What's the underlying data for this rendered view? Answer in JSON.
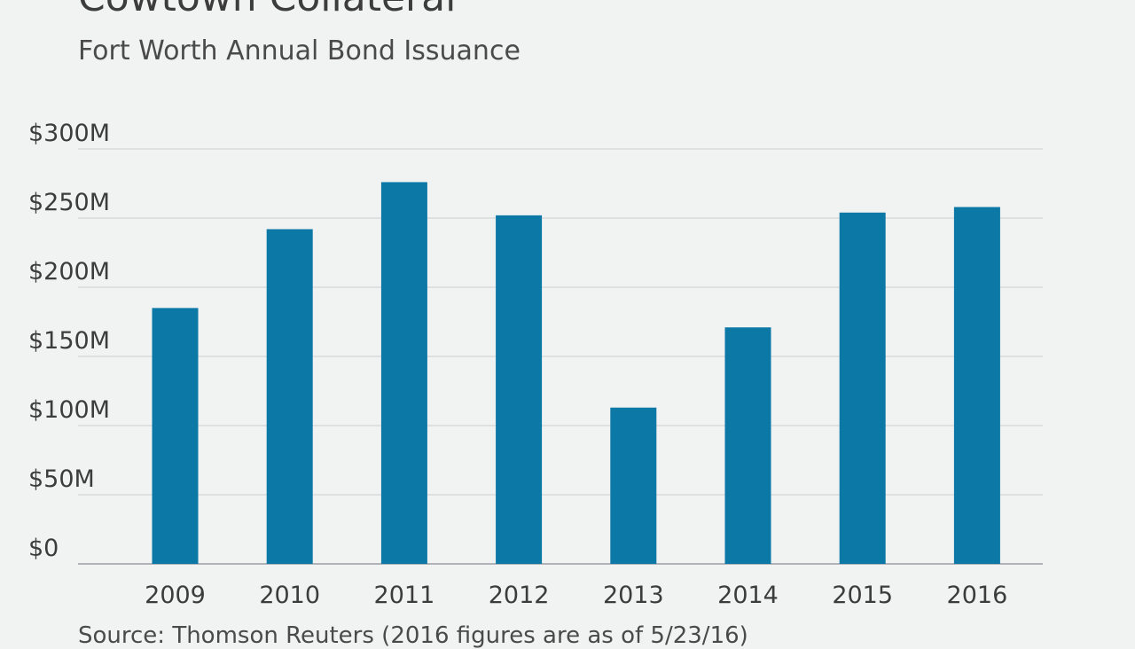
{
  "colors": {
    "background": "#f1f2f2",
    "bar": "#0b78a6",
    "grid": "#d4d6d8"
  },
  "chart_data": {
    "type": "bar",
    "title": "Cowtown Collateral",
    "subtitle": "Fort Worth Annual Bond Issuance",
    "source": "Source: Thomson Reuters (2016 figures are as of 5/23/16)",
    "categories": [
      "2009",
      "2010",
      "2011",
      "2012",
      "2013",
      "2014",
      "2015",
      "2016"
    ],
    "values": [
      185,
      242,
      276,
      252,
      113,
      171,
      254,
      258
    ],
    "y_ticks": [
      0,
      50,
      100,
      150,
      200,
      250,
      300
    ],
    "y_tick_labels": [
      "$0",
      "$50M",
      "$100M",
      "$150M",
      "$200M",
      "$250M",
      "$300M"
    ],
    "ylim": [
      0,
      300
    ],
    "xlabel": "",
    "ylabel": "",
    "grid": true,
    "legend": "none"
  }
}
